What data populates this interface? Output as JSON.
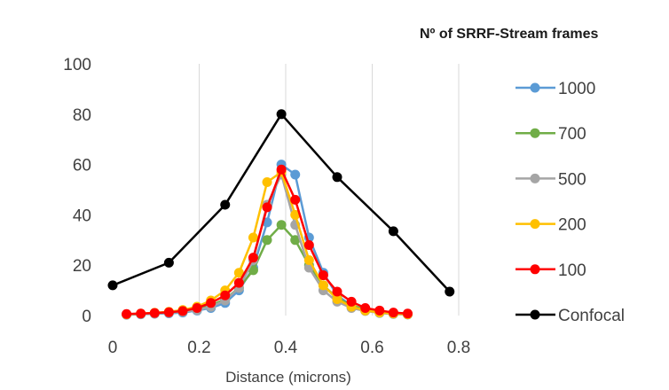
{
  "chart_data": {
    "type": "line",
    "title": "",
    "xlabel": "Distance (microns)",
    "ylabel": "",
    "xlim": [
      0,
      0.8
    ],
    "ylim": [
      0,
      100
    ],
    "xticks": [
      "0",
      "0.2",
      "0.4",
      "0.6",
      "0.8"
    ],
    "yticks": [
      "0",
      "20",
      "40",
      "60",
      "80",
      "100"
    ],
    "grid": "vertical",
    "legend": {
      "title": "Nº of SRRF-Stream frames",
      "position": "right"
    },
    "series": [
      {
        "name": "1000",
        "color": "#5B9BD5",
        "x": [
          0.032,
          0.065,
          0.097,
          0.13,
          0.162,
          0.195,
          0.227,
          0.26,
          0.292,
          0.325,
          0.357,
          0.39,
          0.422,
          0.454,
          0.487,
          0.519,
          0.552,
          0.584,
          0.617,
          0.649,
          0.682
        ],
        "y": [
          0.3,
          0.5,
          0.7,
          0.9,
          1.2,
          2,
          3,
          5,
          10,
          19,
          37,
          60,
          56,
          31,
          17,
          8,
          4,
          2,
          1,
          0.6,
          0.4
        ]
      },
      {
        "name": "700",
        "color": "#70AD47",
        "x": [
          0.032,
          0.065,
          0.097,
          0.13,
          0.162,
          0.195,
          0.227,
          0.26,
          0.292,
          0.325,
          0.357,
          0.39,
          0.422,
          0.454,
          0.487,
          0.519,
          0.552,
          0.584,
          0.617,
          0.649,
          0.682
        ],
        "y": [
          0.5,
          0.7,
          1,
          1.3,
          1.7,
          2.5,
          4,
          6.5,
          11,
          18,
          30,
          36,
          30,
          20,
          12,
          7,
          4,
          2.5,
          1.5,
          1,
          0.7
        ]
      },
      {
        "name": "500",
        "color": "#A5A5A5",
        "x": [
          0.032,
          0.065,
          0.097,
          0.13,
          0.162,
          0.195,
          0.227,
          0.26,
          0.292,
          0.325,
          0.357,
          0.39,
          0.422,
          0.454,
          0.487,
          0.519,
          0.552,
          0.584,
          0.617,
          0.649,
          0.682
        ],
        "y": [
          0.4,
          0.6,
          0.8,
          1.1,
          1.5,
          2.2,
          3.5,
          6,
          11,
          22,
          44,
          56,
          36,
          19,
          10,
          5.5,
          3,
          1.8,
          1.1,
          0.7,
          0.5
        ]
      },
      {
        "name": "200",
        "color": "#FFC000",
        "x": [
          0.032,
          0.065,
          0.097,
          0.13,
          0.162,
          0.195,
          0.227,
          0.26,
          0.292,
          0.325,
          0.357,
          0.39,
          0.422,
          0.454,
          0.487,
          0.519,
          0.552,
          0.584,
          0.617,
          0.649,
          0.682
        ],
        "y": [
          0.5,
          0.8,
          1.1,
          1.5,
          2.2,
          3.5,
          6,
          10,
          17,
          31,
          53,
          57,
          40,
          22,
          12,
          6.5,
          3.5,
          2,
          1.2,
          0.8,
          0.5
        ]
      },
      {
        "name": "100",
        "color": "#FF0000",
        "x": [
          0.032,
          0.065,
          0.097,
          0.13,
          0.162,
          0.195,
          0.227,
          0.26,
          0.292,
          0.325,
          0.357,
          0.39,
          0.422,
          0.454,
          0.487,
          0.519,
          0.552,
          0.584,
          0.617,
          0.649,
          0.682
        ],
        "y": [
          0.6,
          0.8,
          1,
          1.3,
          1.8,
          3,
          5,
          8,
          13,
          23,
          43,
          58,
          46,
          28,
          16,
          9.5,
          5.5,
          3,
          2,
          1.2,
          0.8
        ]
      },
      {
        "name": "Confocal",
        "color": "#000000",
        "x": [
          0,
          0.13,
          0.26,
          0.39,
          0.519,
          0.649,
          0.779
        ],
        "y": [
          12,
          21,
          44,
          80,
          55,
          33.5,
          9.5
        ]
      }
    ]
  }
}
